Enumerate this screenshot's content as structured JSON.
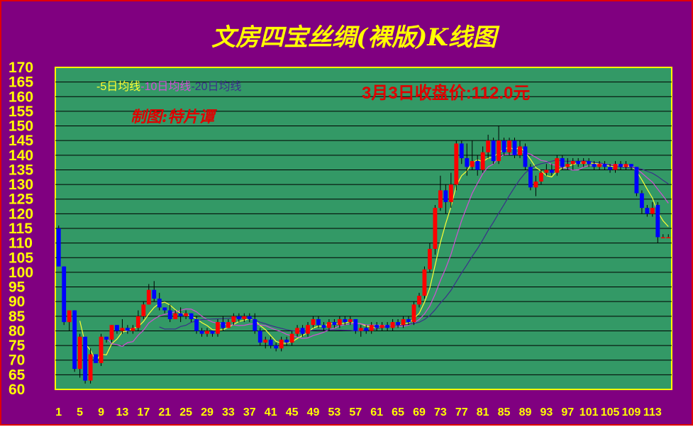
{
  "chart_data": {
    "type": "candlestick",
    "title": "文房四宝丝绸(裸版)K线图",
    "close_note": "3月3日收盘价:112.0元",
    "author_note": "制图:特片谭",
    "legend": [
      {
        "label": "-5日均线",
        "color": "#ffff33"
      },
      {
        "label": "-10日均线",
        "color": "#d24fd6"
      },
      {
        "label": "-20日均线",
        "color": "#3a2f8a"
      }
    ],
    "y_ticks": [
      60,
      65,
      70,
      75,
      80,
      85,
      90,
      95,
      100,
      105,
      110,
      115,
      120,
      125,
      130,
      135,
      140,
      145,
      150,
      155,
      160,
      165,
      170
    ],
    "x_ticks": [
      "1",
      "5",
      "9",
      "13",
      "17",
      "21",
      "25",
      "29",
      "33",
      "37",
      "41",
      "45",
      "49",
      "53",
      "57",
      "61",
      "65",
      "69",
      "73",
      "77",
      "81",
      "85",
      "89",
      "93",
      "97",
      "101",
      "105",
      "109",
      "113"
    ],
    "ylim": [
      60,
      170
    ],
    "x_count": 116,
    "grid": "horizontal",
    "colors": {
      "background": "#800080",
      "plot_background": "#339966",
      "up": "#ff0000",
      "down": "#0000ff",
      "grid": "#000000",
      "text": "#ffff00",
      "frame": "#e00000"
    },
    "candles": [
      [
        115,
        102,
        116,
        102
      ],
      [
        102,
        83,
        102,
        82
      ],
      [
        83,
        87,
        87,
        80
      ],
      [
        87,
        67,
        87,
        66
      ],
      [
        67,
        78,
        79,
        64
      ],
      [
        78,
        63,
        78,
        62
      ],
      [
        63,
        72,
        74,
        62
      ],
      [
        72,
        69,
        72,
        69
      ],
      [
        69,
        78,
        79,
        68
      ],
      [
        78,
        77,
        78,
        76
      ],
      [
        77,
        82,
        82,
        76
      ],
      [
        82,
        80,
        82,
        79
      ],
      [
        80,
        81,
        84,
        79
      ],
      [
        81,
        80,
        82,
        79
      ],
      [
        80,
        81,
        82,
        79
      ],
      [
        81,
        85,
        87,
        80
      ],
      [
        85,
        89,
        90,
        84
      ],
      [
        89,
        94,
        96,
        89
      ],
      [
        94,
        91,
        97,
        90
      ],
      [
        91,
        88,
        93,
        87
      ],
      [
        88,
        87,
        88,
        86
      ],
      [
        87,
        84,
        89,
        83
      ],
      [
        84,
        86,
        87,
        84
      ],
      [
        86,
        85,
        88,
        83
      ],
      [
        85,
        86,
        87,
        84
      ],
      [
        86,
        84,
        86,
        83
      ],
      [
        84,
        80,
        85,
        79
      ],
      [
        80,
        79,
        81,
        78
      ],
      [
        79,
        80,
        81,
        78
      ],
      [
        80,
        79,
        80,
        78
      ],
      [
        79,
        83,
        84,
        78
      ],
      [
        83,
        81,
        85,
        80
      ],
      [
        81,
        83,
        84,
        81
      ],
      [
        83,
        85,
        86,
        82
      ],
      [
        85,
        84,
        86,
        83
      ],
      [
        84,
        85,
        86,
        83
      ],
      [
        85,
        84,
        86,
        83
      ],
      [
        84,
        80,
        86,
        79
      ],
      [
        80,
        76,
        81,
        75
      ],
      [
        76,
        77,
        78,
        74
      ],
      [
        77,
        75,
        78,
        74
      ],
      [
        75,
        74,
        76,
        73
      ],
      [
        74,
        77,
        78,
        73
      ],
      [
        77,
        76,
        78,
        75
      ],
      [
        76,
        79,
        80,
        75
      ],
      [
        79,
        81,
        82,
        78
      ],
      [
        81,
        79,
        82,
        78
      ],
      [
        79,
        82,
        83,
        78
      ],
      [
        82,
        84,
        85,
        81
      ],
      [
        84,
        82,
        85,
        81
      ],
      [
        82,
        81,
        83,
        80
      ],
      [
        81,
        83,
        84,
        80
      ],
      [
        83,
        82,
        84,
        81
      ],
      [
        82,
        84,
        85,
        81
      ],
      [
        84,
        83,
        85,
        82
      ],
      [
        83,
        84,
        85,
        82
      ],
      [
        84,
        80,
        84,
        79
      ],
      [
        80,
        81,
        82,
        78
      ],
      [
        81,
        80,
        82,
        79
      ],
      [
        80,
        82,
        83,
        79
      ],
      [
        82,
        81,
        83,
        80
      ],
      [
        81,
        82,
        83,
        80
      ],
      [
        82,
        81,
        83,
        80
      ],
      [
        81,
        83,
        84,
        80
      ],
      [
        83,
        82,
        84,
        81
      ],
      [
        82,
        84,
        85,
        81
      ],
      [
        84,
        83,
        85,
        82
      ],
      [
        83,
        89,
        90,
        82
      ],
      [
        89,
        92,
        93,
        88
      ],
      [
        92,
        101,
        102,
        91
      ],
      [
        101,
        108,
        110,
        100
      ],
      [
        108,
        122,
        123,
        106
      ],
      [
        122,
        128,
        133,
        121
      ],
      [
        128,
        124,
        130,
        120
      ],
      [
        124,
        130,
        134,
        122
      ],
      [
        130,
        144,
        145,
        128
      ],
      [
        144,
        139,
        145,
        137
      ],
      [
        139,
        136,
        144,
        133
      ],
      [
        136,
        138,
        145,
        135
      ],
      [
        138,
        135,
        140,
        133
      ],
      [
        135,
        141,
        143,
        134
      ],
      [
        141,
        145,
        147,
        139
      ],
      [
        145,
        138,
        146,
        137
      ],
      [
        138,
        145,
        150,
        137
      ],
      [
        145,
        141,
        146,
        140
      ],
      [
        141,
        145,
        146,
        140
      ],
      [
        145,
        140,
        146,
        139
      ],
      [
        140,
        143,
        145,
        139
      ],
      [
        143,
        136,
        144,
        135
      ],
      [
        136,
        129,
        137,
        128
      ],
      [
        129,
        131,
        133,
        126
      ],
      [
        131,
        134,
        135,
        130
      ],
      [
        134,
        135,
        137,
        133
      ],
      [
        135,
        134,
        137,
        133
      ],
      [
        134,
        139,
        140,
        133
      ],
      [
        139,
        136,
        140,
        135
      ],
      [
        136,
        137,
        139,
        135
      ],
      [
        137,
        138,
        139,
        135
      ],
      [
        138,
        137,
        139,
        136
      ],
      [
        137,
        138,
        139,
        136
      ],
      [
        138,
        137,
        139,
        136
      ],
      [
        137,
        136,
        138,
        135
      ],
      [
        136,
        137,
        138,
        135
      ],
      [
        137,
        136,
        138,
        135
      ],
      [
        136,
        135,
        137,
        134
      ],
      [
        135,
        137,
        138,
        134
      ],
      [
        137,
        136,
        138,
        135
      ],
      [
        136,
        137,
        138,
        135
      ],
      [
        137,
        136,
        137,
        135
      ],
      [
        136,
        127,
        136,
        126
      ],
      [
        127,
        122,
        128,
        120
      ],
      [
        122,
        120,
        123,
        119
      ],
      [
        120,
        122,
        124,
        119
      ],
      [
        123,
        112,
        124,
        110
      ],
      [
        112,
        112,
        113,
        112
      ],
      [
        112,
        112,
        113,
        112
      ]
    ]
  }
}
